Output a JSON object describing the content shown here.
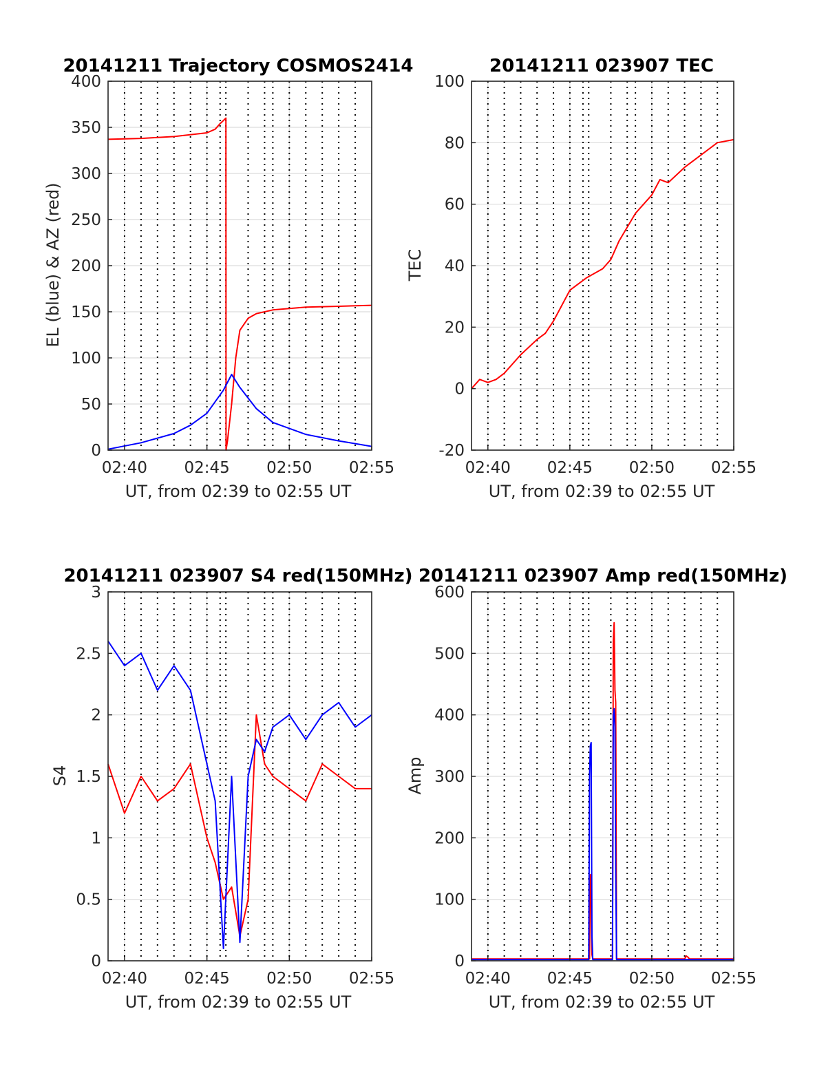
{
  "colors": {
    "red": "#ff0000",
    "blue": "#0000ff",
    "axis": "#262626",
    "grid": "#dcdcdc"
  },
  "chart_data": [
    {
      "id": "trajectory",
      "type": "line",
      "title": "20141211 Trajectory COSMOS2414",
      "xlabel": "UT, from 02:39 to 02:55 UT",
      "ylabel": "EL (blue) & AZ (red)",
      "xlim": [
        0,
        16
      ],
      "ylim": [
        0,
        400
      ],
      "x_ticks": [
        "02:40",
        "02:45",
        "02:50",
        "02:55"
      ],
      "y_ticks": [
        0,
        50,
        100,
        150,
        200,
        250,
        300,
        350,
        400
      ],
      "series": [
        {
          "color": "red",
          "x": [
            0,
            2,
            4,
            6,
            6.5,
            6.8,
            7.15,
            7.16,
            7.25,
            7.5,
            7.75,
            8,
            8.5,
            9,
            10,
            12,
            14,
            16
          ],
          "y": [
            337,
            338,
            340,
            344,
            348,
            354,
            360,
            0,
            10,
            50,
            100,
            130,
            143,
            148,
            152,
            155,
            156,
            157
          ]
        },
        {
          "color": "blue",
          "x": [
            0,
            2,
            4,
            5,
            6,
            7,
            7.5,
            8,
            9,
            10,
            12,
            14,
            16
          ],
          "y": [
            1,
            8,
            18,
            27,
            40,
            65,
            82,
            68,
            45,
            30,
            17,
            10,
            4
          ]
        }
      ],
      "vertical_dotted_lines_x": [
        1,
        2,
        3,
        4,
        5,
        6,
        6.8,
        7.15,
        8.5,
        9.5,
        10,
        11,
        12,
        13,
        14,
        15
      ],
      "grid": true
    },
    {
      "id": "tec",
      "type": "line",
      "title": "20141211 023907 TEC",
      "xlabel": "UT, from 02:39 to 02:55 UT",
      "ylabel": "TEC",
      "xlim": [
        0,
        16
      ],
      "ylim": [
        -20,
        100
      ],
      "x_ticks": [
        "02:40",
        "02:45",
        "02:50",
        "02:55"
      ],
      "y_ticks": [
        -20,
        0,
        20,
        40,
        60,
        80,
        100
      ],
      "series": [
        {
          "color": "red",
          "x": [
            0,
            0.5,
            1,
            1.5,
            2,
            3,
            4,
            4.5,
            5,
            5.5,
            6,
            7,
            8,
            8.5,
            9,
            10,
            11,
            11.5,
            12,
            13,
            14,
            15,
            16
          ],
          "y": [
            0,
            3,
            2,
            3,
            5,
            11,
            16,
            18,
            22,
            27,
            32,
            36,
            39,
            42,
            48,
            57,
            63,
            68,
            67,
            72,
            76,
            80,
            81
          ]
        }
      ],
      "vertical_dotted_lines_x": [
        1,
        2,
        3,
        4,
        5,
        6,
        6.8,
        7.15,
        8.5,
        9.5,
        10,
        11,
        12,
        13,
        14,
        15
      ],
      "grid": true
    },
    {
      "id": "s4",
      "type": "line",
      "title": "20141211 023907 S4 red(150MHz)",
      "xlabel": "UT, from 02:39 to 02:55 UT",
      "ylabel": "S4",
      "xlim": [
        0,
        16
      ],
      "ylim": [
        0,
        3
      ],
      "x_ticks": [
        "02:40",
        "02:45",
        "02:50",
        "02:55"
      ],
      "y_ticks": [
        0,
        0.5,
        1,
        1.5,
        2,
        2.5,
        3
      ],
      "series": [
        {
          "color": "red",
          "x": [
            0,
            1,
            2,
            3,
            4,
            5,
            6,
            6.5,
            7,
            7.5,
            8,
            8.5,
            9,
            9.5,
            10,
            11,
            12,
            13,
            14,
            15,
            16
          ],
          "y": [
            1.6,
            1.2,
            1.5,
            1.3,
            1.4,
            1.6,
            1.0,
            0.8,
            0.5,
            0.6,
            0.2,
            0.5,
            2.0,
            1.6,
            1.5,
            1.4,
            1.3,
            1.6,
            1.5,
            1.4,
            1.4
          ]
        },
        {
          "color": "blue",
          "x": [
            0,
            1,
            2,
            3,
            4,
            5,
            6,
            6.5,
            7,
            7.5,
            8,
            8.5,
            9,
            9.5,
            10,
            11,
            12,
            13,
            14,
            15,
            16
          ],
          "y": [
            2.6,
            2.4,
            2.5,
            2.2,
            2.4,
            2.2,
            1.6,
            1.3,
            0.1,
            1.5,
            0.15,
            1.5,
            1.8,
            1.7,
            1.9,
            2.0,
            1.8,
            2.0,
            2.1,
            1.9,
            2.0
          ]
        }
      ],
      "vertical_dotted_lines_x": [
        1,
        2,
        3,
        4,
        5,
        6,
        6.8,
        7.15,
        8.5,
        9.5,
        10,
        11,
        12,
        13,
        14,
        15
      ],
      "grid": true
    },
    {
      "id": "amp",
      "type": "line",
      "title": "20141211 023907 Amp red(150MHz)",
      "xlabel": "UT, from 02:39 to 02:55 UT",
      "ylabel": "Amp",
      "xlim": [
        0,
        16
      ],
      "ylim": [
        0,
        600
      ],
      "x_ticks": [
        "02:40",
        "02:45",
        "02:50",
        "02:55"
      ],
      "y_ticks": [
        0,
        100,
        200,
        300,
        400,
        500,
        600
      ],
      "series": [
        {
          "color": "red",
          "x": [
            0,
            6,
            7.2,
            7.25,
            7.3,
            7.35,
            7.4,
            8.6,
            8.65,
            8.7,
            8.75,
            8.8,
            8.85,
            13,
            13.1,
            13.2,
            13.3,
            16
          ],
          "y": [
            3,
            3,
            3,
            140,
            130,
            10,
            3,
            3,
            520,
            550,
            440,
            420,
            3,
            3,
            8,
            6,
            3,
            3
          ]
        },
        {
          "color": "blue",
          "x": [
            0,
            6,
            7.15,
            7.2,
            7.25,
            7.3,
            7.35,
            7.4,
            8.6,
            8.65,
            8.7,
            8.75,
            8.8,
            8.85,
            16
          ],
          "y": [
            2,
            2,
            2,
            300,
            350,
            355,
            40,
            2,
            2,
            400,
            410,
            380,
            150,
            2,
            2
          ]
        }
      ],
      "vertical_dotted_lines_x": [
        1,
        2,
        3,
        4,
        5,
        6,
        6.8,
        7.15,
        8.5,
        9.5,
        10,
        11,
        12,
        13,
        14,
        15
      ],
      "grid": true
    }
  ]
}
